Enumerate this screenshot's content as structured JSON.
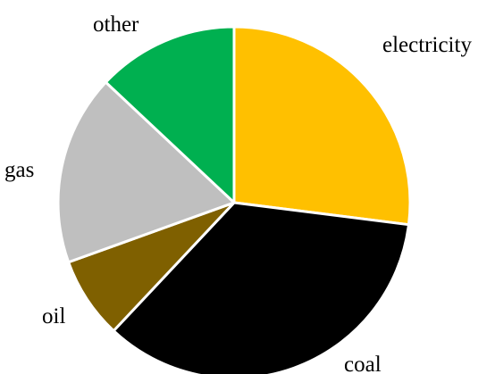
{
  "chart_data": {
    "type": "pie",
    "title": "",
    "labels": [
      "electricity",
      "coal",
      "oil",
      "gas",
      "other"
    ],
    "values": [
      27,
      35,
      7.5,
      17.5,
      13
    ],
    "colors": {
      "electricity": "#FFC000",
      "coal": "#000000",
      "oil": "#7F6000",
      "gas": "#BFBFBF",
      "other": "#00B050"
    },
    "start_angle": "12 o'clock",
    "direction": "clockwise",
    "legend": "none",
    "slice_labels": "outside"
  }
}
